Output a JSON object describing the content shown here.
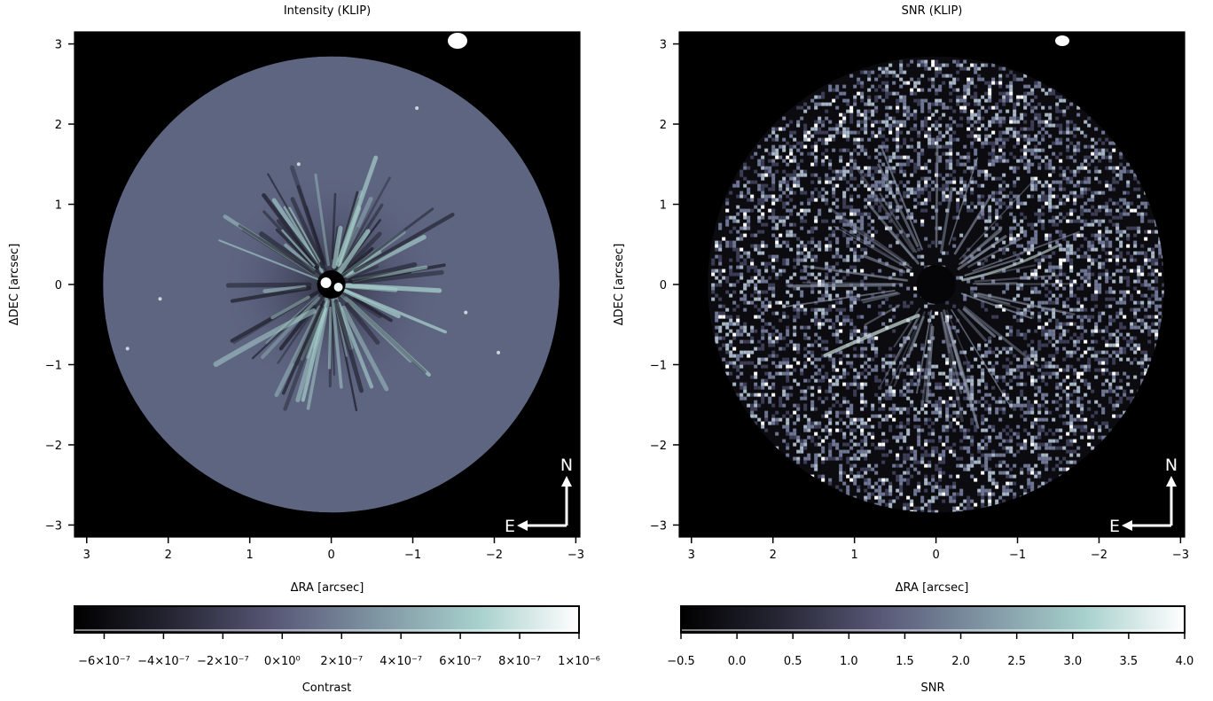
{
  "figure": {
    "colormap": [
      "#000000",
      "#272736",
      "#595978",
      "#7f95a3",
      "#a7d0cc",
      "#ffffff"
    ]
  },
  "chart_data": [
    {
      "type": "heatmap",
      "title": "Intensity (KLIP)",
      "xlabel": "ΔRA [arcsec]",
      "ylabel": "ΔDEC [arcsec]",
      "xlim": [
        3.15,
        -3.05
      ],
      "ylim": [
        -3.15,
        3.15
      ],
      "x_ticks": [
        3,
        2,
        1,
        0,
        -1,
        -2,
        -3
      ],
      "x_tick_labels": [
        "3",
        "2",
        "1",
        "0",
        "−1",
        "−2",
        "−3"
      ],
      "y_ticks": [
        3,
        2,
        1,
        0,
        -1,
        -2,
        -3
      ],
      "y_tick_labels": [
        "3",
        "2",
        "1",
        "0",
        "−1",
        "−2",
        "−3"
      ],
      "field_radius_arcsec": 2.8,
      "colorbar": {
        "label": "Contrast",
        "vmin": -7e-07,
        "vmax": 1e-06,
        "ticks": [
          -6e-07,
          -4e-07,
          -2e-07,
          0,
          2e-07,
          4e-07,
          6e-07,
          8e-07,
          1e-06
        ],
        "tick_labels": [
          "−6×10⁻⁷",
          "−4×10⁻⁷",
          "−2×10⁻⁷",
          "0×10⁰",
          "2×10⁻⁷",
          "4×10⁻⁷",
          "6×10⁻⁷",
          "8×10⁻⁷",
          "1×10⁻⁶"
        ]
      },
      "compass": {
        "north": "N",
        "east": "E"
      }
    },
    {
      "type": "heatmap",
      "title": "SNR (KLIP)",
      "xlabel": "ΔRA [arcsec]",
      "ylabel": "ΔDEC [arcsec]",
      "xlim": [
        3.15,
        -3.05
      ],
      "ylim": [
        -3.15,
        3.15
      ],
      "x_ticks": [
        3,
        2,
        1,
        0,
        -1,
        -2,
        -3
      ],
      "x_tick_labels": [
        "3",
        "2",
        "1",
        "0",
        "−1",
        "−2",
        "−3"
      ],
      "y_ticks": [
        3,
        2,
        1,
        0,
        -1,
        -2,
        -3
      ],
      "y_tick_labels": [
        "3",
        "2",
        "1",
        "0",
        "−1",
        "−2",
        "−3"
      ],
      "field_radius_arcsec": 2.8,
      "colorbar": {
        "label": "SNR",
        "vmin": -0.5,
        "vmax": 4.0,
        "ticks": [
          -0.5,
          0.0,
          0.5,
          1.0,
          1.5,
          2.0,
          2.5,
          3.0,
          3.5,
          4.0
        ],
        "tick_labels": [
          "−0.5",
          "0.0",
          "0.5",
          "1.0",
          "1.5",
          "2.0",
          "2.5",
          "3.0",
          "3.5",
          "4.0"
        ]
      },
      "compass": {
        "north": "N",
        "east": "E"
      }
    }
  ]
}
